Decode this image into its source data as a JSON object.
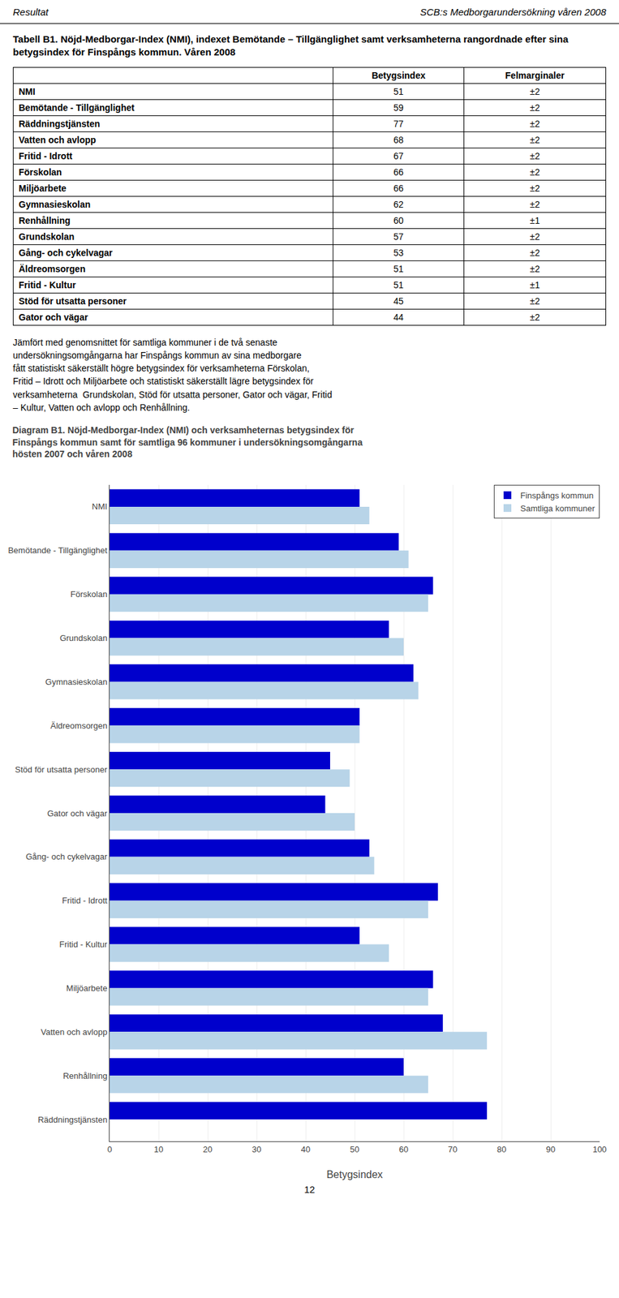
{
  "header": [
    "Resultat",
    "SCB:s Medborgarundersökning våren 2008"
  ],
  "chart_data": [
    {
      "type": "table",
      "title": "Tabell B1. Nöjd-Medborgar-Index (NMI), indexet Bemötande – Tillgänglighet samt verksamheterna rangordnade efter sina betygsindex för Finspångs kommun. Våren 2008",
      "columns": [
        "Betygsindex",
        "Felmarginaler"
      ],
      "categories": [
        "NMI",
        "Bemötande - Tillgänglighet",
        "Räddningstjänsten",
        "Vatten och avlopp",
        "Fritid - Idrott",
        "Förskolan",
        "Miljöarbete",
        "Gymnasieskolan",
        "Renhållning",
        "Grundskolan",
        "Gång- och cykelvagar",
        "Äldreomsorgen",
        "Fritid - Kultur",
        "Stöd för utsatta personer",
        "Gator och vägar"
      ],
      "values": [
        51,
        59,
        77,
        68,
        67,
        66,
        66,
        62,
        60,
        57,
        53,
        51,
        51,
        45,
        44
      ],
      "margins": [
        "±2",
        "±2",
        "±2",
        "±2",
        "±2",
        "±2",
        "±2",
        "±2",
        "±1",
        "±2",
        "±2",
        "±2",
        "±1",
        "±2",
        "±2"
      ]
    },
    {
      "type": "bar",
      "title": "Diagram B1. Nöjd-Medborgar-Index (NMI) och verksamheternas betygsindex för\nFinspångs kommun samt för samtliga 96 kommuner i undersökningsomgångarna\nhösten 2007 och våren 2008",
      "orientation": "horizontal",
      "categories": [
        "NMI",
        "Bemötande - Tillgänglighet",
        "Förskolan",
        "Grundskolan",
        "Gymnasieskolan",
        "Äldreomsorgen",
        "Stöd för utsatta personer",
        "Gator och vägar",
        "Gång- och cykelvagar",
        "Fritid - Idrott",
        "Fritid - Kultur",
        "Miljöarbete",
        "Vatten och avlopp",
        "Renhållning",
        "Räddningstjänsten"
      ],
      "series": [
        {
          "name": "Finspångs kommun",
          "color": "#0000CC",
          "values": [
            51,
            59,
            66,
            57,
            62,
            51,
            45,
            44,
            53,
            67,
            51,
            66,
            68,
            60,
            77
          ]
        },
        {
          "name": "Samtliga kommuner",
          "color": "#B8D4E8",
          "values": [
            53,
            61,
            65,
            60,
            63,
            51,
            49,
            50,
            54,
            65,
            57,
            65,
            77,
            65,
            0
          ]
        }
      ],
      "xlabel": "Betygsindex",
      "xlim": [
        0,
        100
      ],
      "xticks": [
        0,
        10,
        20,
        30,
        40,
        50,
        60,
        70,
        80,
        90,
        100
      ],
      "grid": true,
      "legend": "upper right"
    }
  ],
  "text": [
    "Jämfört med genomsnittet för samtliga kommuner i de två senaste",
    "undersökningsomgångarna har Finspångs kommun av sina medborgare",
    "fått statistiskt säkerställt högre betygsindex för verksamheterna Förskolan,",
    "Fritid – Idrott och Miljöarbete och statistiskt säkerställt lägre betygsindex för",
    "verksamheterna  Grundskolan, Stöd för utsatta personer, Gator och vägar, Fritid",
    "– Kultur, Vatten och avlopp och Renhållning."
  ],
  "page_number": "12"
}
